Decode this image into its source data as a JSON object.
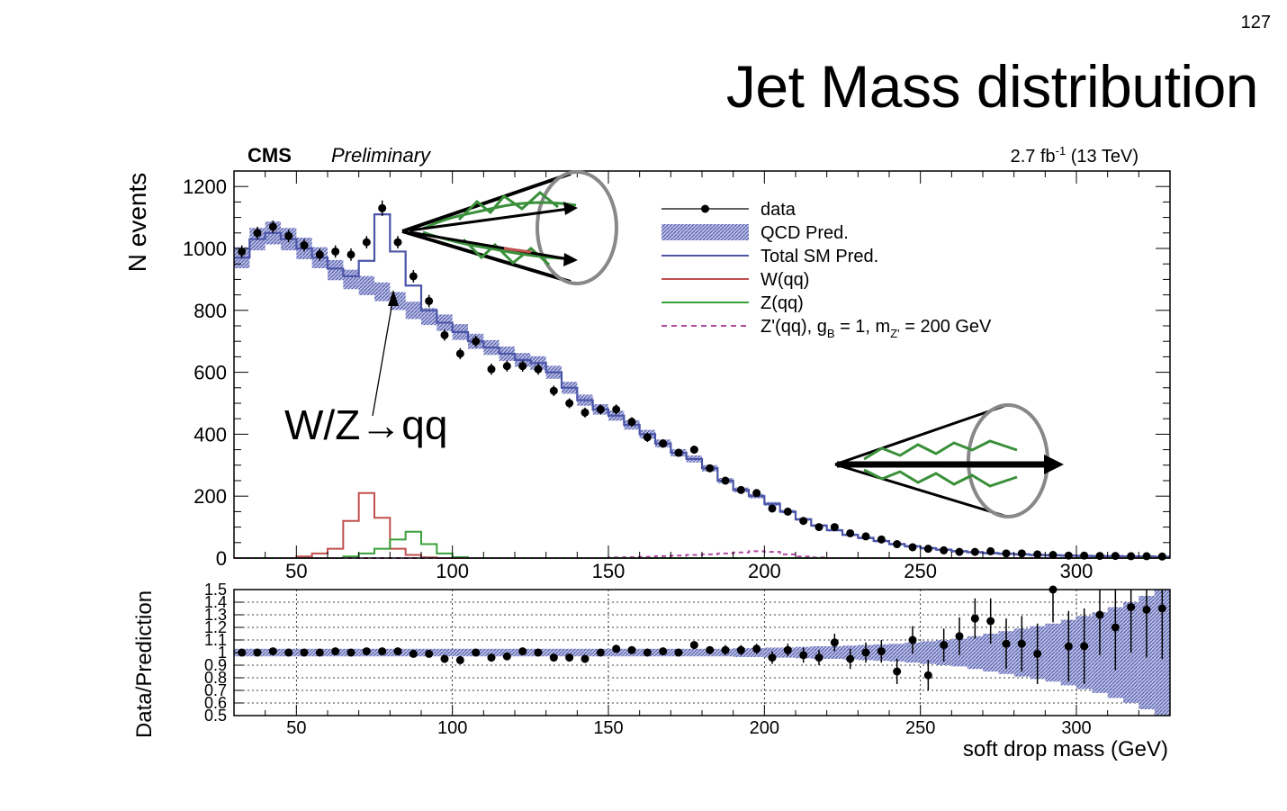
{
  "slide": {
    "number": "127",
    "title": "Jet Mass distribution"
  },
  "chart_data": {
    "type": "histogram",
    "header_left_bold": "CMS",
    "header_left_italic": "Preliminary",
    "header_right_lumi": "2.7 fb",
    "header_right_exp": "-1",
    "header_right_energy": " (13 TeV)",
    "ylabel": "N events",
    "xlabel": "soft drop mass (GeV)",
    "xlim": [
      30,
      330
    ],
    "ylim": [
      0,
      1250
    ],
    "xticks": [
      "50",
      "100",
      "150",
      "200",
      "250",
      "300"
    ],
    "yticks": [
      "0",
      "200",
      "400",
      "600",
      "800",
      "1000",
      "1200"
    ],
    "annotation": "W/Z→qq",
    "legend": {
      "placement": "top-right",
      "entries": [
        {
          "label": "data",
          "style": "marker"
        },
        {
          "label": "QCD Pred.",
          "style": "band"
        },
        {
          "label": "Total SM Pred.",
          "style": "line"
        },
        {
          "label": "W(qq)",
          "style": "line"
        },
        {
          "label": "Z(qq)",
          "style": "line"
        },
        {
          "label": "Z'(qq), g",
          "sub1": "B",
          "mid": " = 1, m",
          "sub2": "Z'",
          "tail": " = 200 GeV",
          "style": "dashed"
        }
      ]
    },
    "colors": {
      "data": "#000000",
      "qcd_band": "#7f86c4",
      "total_sm": "#4b55a8",
      "w": "#c0504d",
      "z": "#3aa03a",
      "zprime": "#b04aa0"
    },
    "x": [
      32.5,
      37.5,
      42.5,
      47.5,
      52.5,
      57.5,
      62.5,
      67.5,
      72.5,
      77.5,
      82.5,
      87.5,
      92.5,
      97.5,
      102.5,
      107.5,
      112.5,
      117.5,
      122.5,
      127.5,
      132.5,
      137.5,
      142.5,
      147.5,
      152.5,
      157.5,
      162.5,
      167.5,
      172.5,
      177.5,
      182.5,
      187.5,
      192.5,
      197.5,
      202.5,
      207.5,
      212.5,
      217.5,
      222.5,
      227.5,
      232.5,
      237.5,
      242.5,
      247.5,
      252.5,
      257.5,
      262.5,
      267.5,
      272.5,
      277.5,
      282.5,
      287.5,
      292.5,
      297.5,
      302.5,
      307.5,
      312.5,
      317.5,
      322.5,
      327.5
    ],
    "series": [
      {
        "name": "data",
        "values": [
          990,
          1050,
          1070,
          1040,
          1010,
          980,
          990,
          980,
          1020,
          1130,
          1020,
          910,
          830,
          720,
          660,
          700,
          610,
          620,
          620,
          610,
          540,
          500,
          470,
          480,
          480,
          440,
          390,
          370,
          340,
          350,
          290,
          250,
          220,
          210,
          160,
          150,
          120,
          100,
          100,
          80,
          70,
          60,
          45,
          35,
          30,
          25,
          20,
          20,
          22,
          15,
          15,
          12,
          10,
          8,
          8,
          7,
          7,
          6,
          6,
          5
        ],
        "errors": [
          20,
          20,
          20,
          20,
          20,
          20,
          20,
          20,
          20,
          25,
          20,
          20,
          20,
          18,
          18,
          18,
          18,
          18,
          18,
          18,
          17,
          16,
          16,
          16,
          16,
          15,
          15,
          14,
          13,
          13,
          12,
          11,
          11,
          10,
          9,
          9,
          8,
          7,
          7,
          6,
          6,
          5,
          5,
          4,
          4,
          4,
          3,
          3,
          3,
          3,
          3,
          3,
          2,
          2,
          2,
          2,
          2,
          2,
          2,
          2
        ]
      },
      {
        "name": "QCD Pred.",
        "values": [
          970,
          1030,
          1050,
          1030,
          1000,
          970,
          930,
          900,
          880,
          860,
          830,
          800,
          780,
          760,
          730,
          700,
          680,
          660,
          640,
          630,
          600,
          550,
          510,
          480,
          460,
          430,
          400,
          370,
          340,
          320,
          290,
          250,
          220,
          200,
          175,
          150,
          125,
          105,
          90,
          75,
          65,
          55,
          45,
          38,
          32,
          27,
          22,
          19,
          16,
          14,
          12,
          10,
          9,
          8,
          7,
          6,
          6,
          5,
          5,
          4
        ]
      },
      {
        "name": "Total SM Pred.",
        "values": [
          970,
          1030,
          1050,
          1030,
          1000,
          970,
          935,
          910,
          960,
          1110,
          990,
          880,
          800,
          760,
          730,
          700,
          680,
          660,
          640,
          630,
          600,
          550,
          510,
          480,
          460,
          430,
          400,
          370,
          340,
          320,
          290,
          250,
          220,
          200,
          175,
          150,
          125,
          105,
          90,
          75,
          65,
          55,
          45,
          38,
          32,
          27,
          22,
          19,
          16,
          14,
          12,
          10,
          9,
          8,
          7,
          6,
          6,
          5,
          5,
          4
        ]
      },
      {
        "name": "W(qq)",
        "values": [
          0,
          0,
          0,
          0,
          5,
          15,
          30,
          120,
          210,
          130,
          30,
          10,
          2,
          0,
          0,
          0,
          0,
          0,
          0,
          0,
          0,
          0,
          0,
          0,
          0,
          0,
          0,
          0,
          0,
          0,
          0,
          0,
          0,
          0,
          0,
          0,
          0,
          0,
          0,
          0,
          0,
          0,
          0,
          0,
          0,
          0,
          0,
          0,
          0,
          0,
          0,
          0,
          0,
          0,
          0,
          0,
          0,
          0,
          0,
          0
        ]
      },
      {
        "name": "Z(qq)",
        "values": [
          0,
          0,
          0,
          0,
          0,
          0,
          0,
          5,
          15,
          30,
          60,
          85,
          45,
          15,
          3,
          0,
          0,
          0,
          0,
          0,
          0,
          0,
          0,
          0,
          0,
          0,
          0,
          0,
          0,
          0,
          0,
          0,
          0,
          0,
          0,
          0,
          0,
          0,
          0,
          0,
          0,
          0,
          0,
          0,
          0,
          0,
          0,
          0,
          0,
          0,
          0,
          0,
          0,
          0,
          0,
          0,
          0,
          0,
          0,
          0
        ]
      },
      {
        "name": "Z'(qq), g_B = 1, m_Z' = 200 GeV",
        "values": [
          0,
          0,
          0,
          0,
          0,
          0,
          0,
          0,
          0,
          0,
          0,
          0,
          0,
          0,
          0,
          0,
          0,
          0,
          0,
          0,
          0,
          0,
          0,
          0,
          2,
          3,
          4,
          6,
          8,
          10,
          12,
          15,
          18,
          22,
          20,
          12,
          5,
          2,
          0,
          0,
          0,
          0,
          0,
          0,
          0,
          0,
          0,
          0,
          0,
          0,
          0,
          0,
          0,
          0,
          0,
          0,
          0,
          0,
          0,
          0
        ]
      }
    ],
    "ratio": {
      "ylabel": "Data/Prediction",
      "ylim": [
        0.5,
        1.5
      ],
      "yticks": [
        "0.5",
        "0.6",
        "0.7",
        "0.8",
        "0.9",
        "1",
        "1.1",
        "1.2",
        "1.3",
        "1.4",
        "1.5"
      ],
      "values": [
        1.0,
        1.0,
        1.01,
        1.0,
        1.0,
        1.0,
        1.01,
        1.0,
        1.01,
        1.01,
        1.01,
        0.99,
        0.99,
        0.95,
        0.94,
        1.0,
        0.96,
        0.97,
        1.01,
        1.0,
        0.96,
        0.96,
        0.95,
        1.0,
        1.03,
        1.02,
        1.0,
        1.01,
        1.0,
        1.06,
        1.02,
        1.02,
        1.02,
        1.03,
        0.96,
        1.02,
        0.98,
        0.96,
        1.08,
        0.95,
        1.0,
        1.01,
        0.85,
        1.1,
        0.82,
        1.06,
        1.13,
        1.27,
        1.25,
        1.07,
        1.07,
        0.99,
        1.5,
        1.05,
        1.05,
        1.3,
        1.2,
        1.36,
        1.34,
        1.35
      ],
      "errors": [
        0.02,
        0.02,
        0.02,
        0.02,
        0.02,
        0.02,
        0.02,
        0.02,
        0.02,
        0.02,
        0.02,
        0.02,
        0.02,
        0.02,
        0.02,
        0.02,
        0.02,
        0.02,
        0.02,
        0.02,
        0.02,
        0.02,
        0.02,
        0.02,
        0.03,
        0.03,
        0.03,
        0.03,
        0.03,
        0.03,
        0.03,
        0.04,
        0.04,
        0.04,
        0.05,
        0.05,
        0.06,
        0.06,
        0.07,
        0.08,
        0.08,
        0.09,
        0.1,
        0.11,
        0.12,
        0.13,
        0.15,
        0.16,
        0.18,
        0.2,
        0.22,
        0.24,
        0.26,
        0.28,
        0.3,
        0.32,
        0.34,
        0.36,
        0.38,
        0.4
      ],
      "band": [
        0.03,
        0.03,
        0.03,
        0.03,
        0.03,
        0.03,
        0.03,
        0.03,
        0.03,
        0.03,
        0.03,
        0.03,
        0.03,
        0.03,
        0.03,
        0.03,
        0.03,
        0.03,
        0.03,
        0.03,
        0.03,
        0.03,
        0.03,
        0.03,
        0.03,
        0.03,
        0.03,
        0.03,
        0.03,
        0.03,
        0.03,
        0.03,
        0.035,
        0.035,
        0.04,
        0.04,
        0.045,
        0.05,
        0.05,
        0.055,
        0.06,
        0.065,
        0.07,
        0.08,
        0.09,
        0.1,
        0.11,
        0.13,
        0.15,
        0.17,
        0.19,
        0.21,
        0.23,
        0.26,
        0.29,
        0.32,
        0.36,
        0.4,
        0.45,
        0.5
      ]
    }
  }
}
